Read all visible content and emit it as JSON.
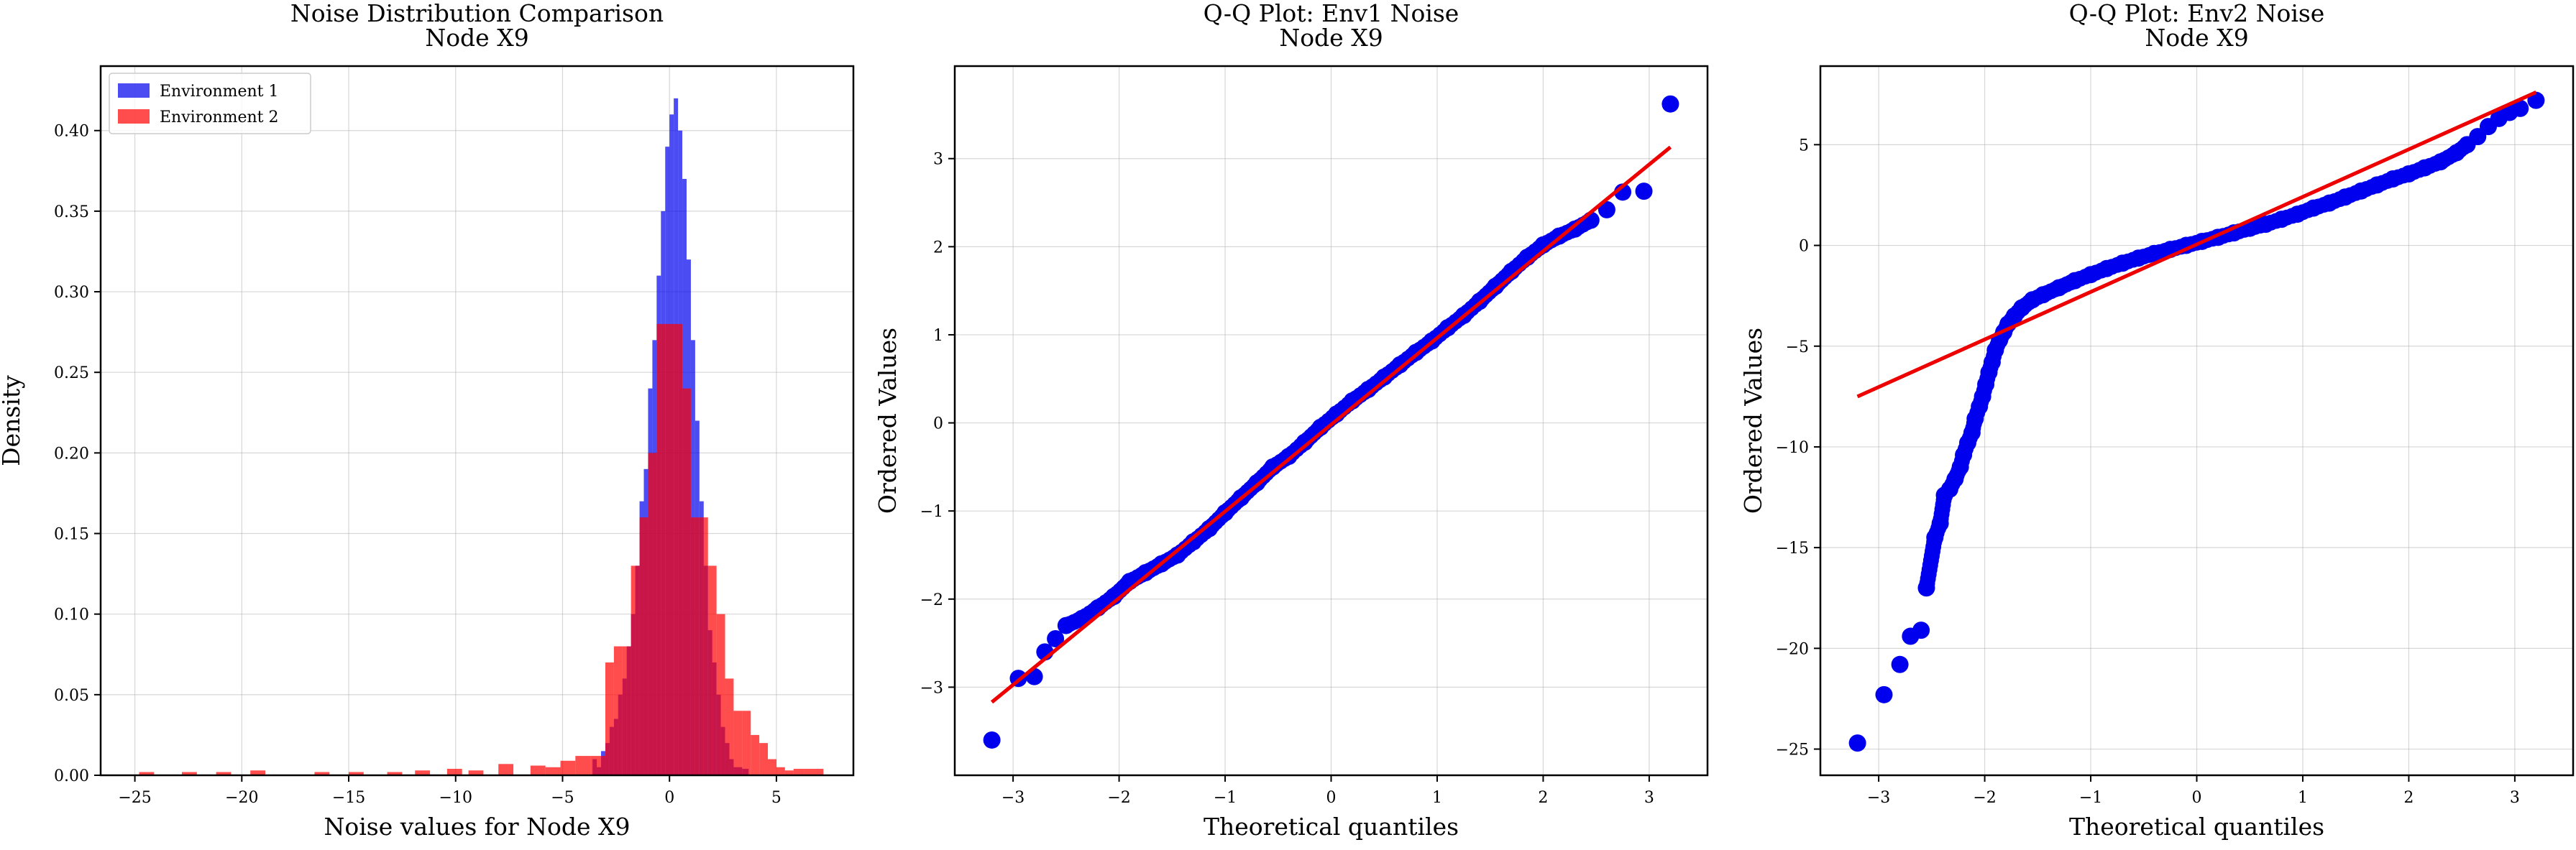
{
  "chart_data": [
    {
      "type": "histogram",
      "title": "Noise Distribution Comparison\nNode X9",
      "xlabel": "Noise values for Node X9",
      "ylabel": "Density",
      "xlim": [
        -26.6,
        8.6
      ],
      "ylim": [
        0,
        0.44
      ],
      "xticks": [
        -25,
        -20,
        -15,
        -10,
        -5,
        0,
        5
      ],
      "yticks": [
        0.0,
        0.05,
        0.1,
        0.15,
        0.2,
        0.25,
        0.3,
        0.35,
        0.4
      ],
      "xtick_labels": [
        "−25",
        "−20",
        "−15",
        "−10",
        "−5",
        "0",
        "5"
      ],
      "ytick_labels": [
        "0.00",
        "0.05",
        "0.10",
        "0.15",
        "0.20",
        "0.25",
        "0.30",
        "0.35",
        "0.40"
      ],
      "grid": true,
      "legend": "upper-left",
      "series": [
        {
          "name": "Environment 1",
          "color": "#0000ee",
          "alpha": 0.7,
          "bins": [
            [
              -3.6,
              -3.4,
              0.01
            ],
            [
              -3.4,
              -3.2,
              0.005
            ],
            [
              -3.2,
              -3.0,
              0.015
            ],
            [
              -3.0,
              -2.8,
              0.02
            ],
            [
              -2.8,
              -2.6,
              0.03
            ],
            [
              -2.6,
              -2.4,
              0.035
            ],
            [
              -2.4,
              -2.2,
              0.05
            ],
            [
              -2.2,
              -2.0,
              0.06
            ],
            [
              -2.0,
              -1.8,
              0.08
            ],
            [
              -1.8,
              -1.6,
              0.1
            ],
            [
              -1.6,
              -1.4,
              0.13
            ],
            [
              -1.4,
              -1.2,
              0.17
            ],
            [
              -1.2,
              -1.0,
              0.19
            ],
            [
              -1.0,
              -0.8,
              0.24
            ],
            [
              -0.8,
              -0.6,
              0.27
            ],
            [
              -0.6,
              -0.4,
              0.31
            ],
            [
              -0.4,
              -0.2,
              0.35
            ],
            [
              -0.2,
              0.0,
              0.39
            ],
            [
              0.0,
              0.2,
              0.41
            ],
            [
              0.2,
              0.4,
              0.42
            ],
            [
              0.4,
              0.6,
              0.4
            ],
            [
              0.6,
              0.8,
              0.37
            ],
            [
              0.8,
              1.0,
              0.32
            ],
            [
              1.0,
              1.2,
              0.27
            ],
            [
              1.2,
              1.4,
              0.22
            ],
            [
              1.4,
              1.6,
              0.17
            ],
            [
              1.6,
              1.8,
              0.13
            ],
            [
              1.8,
              2.0,
              0.09
            ],
            [
              2.0,
              2.2,
              0.07
            ],
            [
              2.2,
              2.4,
              0.05
            ],
            [
              2.4,
              2.6,
              0.03
            ],
            [
              2.6,
              2.8,
              0.02
            ],
            [
              2.8,
              3.0,
              0.01
            ],
            [
              3.0,
              3.4,
              0.005
            ],
            [
              3.4,
              3.7,
              0.004
            ]
          ]
        },
        {
          "name": "Environment 2",
          "color": "#ff0000",
          "alpha": 0.7,
          "bins": [
            [
              -24.8,
              -24.1,
              0.002
            ],
            [
              -22.8,
              -22.1,
              0.002
            ],
            [
              -21.2,
              -20.5,
              0.002
            ],
            [
              -19.6,
              -18.9,
              0.003
            ],
            [
              -16.6,
              -15.9,
              0.002
            ],
            [
              -15.0,
              -14.3,
              0.002
            ],
            [
              -13.2,
              -12.5,
              0.002
            ],
            [
              -11.9,
              -11.2,
              0.003
            ],
            [
              -10.4,
              -9.7,
              0.004
            ],
            [
              -9.4,
              -8.7,
              0.003
            ],
            [
              -8.0,
              -7.3,
              0.007
            ],
            [
              -6.5,
              -5.8,
              0.006
            ],
            [
              -5.8,
              -5.1,
              0.005
            ],
            [
              -5.1,
              -4.4,
              0.009
            ],
            [
              -4.4,
              -3.7,
              0.012
            ],
            [
              -3.7,
              -3.0,
              0.012
            ],
            [
              -3.0,
              -2.6,
              0.07
            ],
            [
              -2.6,
              -2.2,
              0.08
            ],
            [
              -2.2,
              -1.8,
              0.08
            ],
            [
              -1.8,
              -1.4,
              0.13
            ],
            [
              -1.4,
              -1.0,
              0.16
            ],
            [
              -1.0,
              -0.6,
              0.2
            ],
            [
              -0.6,
              -0.2,
              0.28
            ],
            [
              -0.2,
              0.2,
              0.28
            ],
            [
              0.2,
              0.6,
              0.28
            ],
            [
              0.6,
              1.0,
              0.24
            ],
            [
              1.0,
              1.4,
              0.16
            ],
            [
              1.4,
              1.8,
              0.16
            ],
            [
              1.8,
              2.2,
              0.13
            ],
            [
              2.2,
              2.6,
              0.1
            ],
            [
              2.6,
              3.0,
              0.06
            ],
            [
              3.0,
              3.4,
              0.04
            ],
            [
              3.4,
              3.8,
              0.04
            ],
            [
              3.8,
              4.2,
              0.025
            ],
            [
              4.2,
              4.6,
              0.02
            ],
            [
              4.6,
              5.0,
              0.01
            ],
            [
              5.0,
              5.4,
              0.005
            ],
            [
              5.4,
              5.8,
              0.003
            ],
            [
              5.8,
              6.3,
              0.004
            ],
            [
              6.3,
              7.2,
              0.004
            ]
          ]
        }
      ]
    },
    {
      "type": "scatter",
      "title": "Q-Q Plot: Env1 Noise\nNode X9",
      "xlabel": "Theoretical quantiles",
      "ylabel": "Ordered Values",
      "xlim": [
        -3.55,
        3.55
      ],
      "ylim": [
        -4.0,
        4.05
      ],
      "xticks": [
        -3,
        -2,
        -1,
        0,
        1,
        2,
        3
      ],
      "yticks": [
        -3,
        -2,
        -1,
        0,
        1,
        2,
        3
      ],
      "xtick_labels": [
        "−3",
        "−2",
        "−1",
        "0",
        "1",
        "2",
        "3"
      ],
      "ytick_labels": [
        "−3",
        "−2",
        "−1",
        "0",
        "1",
        "2",
        "3"
      ],
      "grid": true,
      "points_color": "#0000ee",
      "line_color": "#ee0000",
      "points": [
        [
          -3.2,
          -3.6
        ],
        [
          -2.95,
          -2.9
        ],
        [
          -2.8,
          -2.88
        ],
        [
          -2.7,
          -2.6
        ],
        [
          -2.6,
          -2.45
        ],
        [
          -2.5,
          -2.3
        ],
        [
          -2.35,
          -2.22
        ],
        [
          -2.2,
          -2.1
        ],
        [
          -2.05,
          -1.97
        ],
        [
          -1.9,
          -1.8
        ],
        [
          -1.75,
          -1.7
        ],
        [
          -1.6,
          -1.6
        ],
        [
          -1.45,
          -1.5
        ],
        [
          -1.3,
          -1.35
        ],
        [
          -1.15,
          -1.2
        ],
        [
          -1.0,
          -1.02
        ],
        [
          -0.85,
          -0.85
        ],
        [
          -0.7,
          -0.68
        ],
        [
          -0.55,
          -0.5
        ],
        [
          -0.4,
          -0.38
        ],
        [
          -0.25,
          -0.22
        ],
        [
          -0.1,
          -0.05
        ],
        [
          0.05,
          0.1
        ],
        [
          0.2,
          0.25
        ],
        [
          0.35,
          0.38
        ],
        [
          0.5,
          0.52
        ],
        [
          0.65,
          0.66
        ],
        [
          0.8,
          0.8
        ],
        [
          0.95,
          0.93
        ],
        [
          1.1,
          1.08
        ],
        [
          1.25,
          1.22
        ],
        [
          1.4,
          1.38
        ],
        [
          1.55,
          1.55
        ],
        [
          1.7,
          1.72
        ],
        [
          1.85,
          1.88
        ],
        [
          2.0,
          2.02
        ],
        [
          2.15,
          2.12
        ],
        [
          2.3,
          2.2
        ],
        [
          2.45,
          2.3
        ],
        [
          2.6,
          2.42
        ],
        [
          2.75,
          2.62
        ],
        [
          2.95,
          2.63
        ],
        [
          3.2,
          3.62
        ]
      ],
      "fit_line": [
        [
          -3.2,
          -3.17
        ],
        [
          3.2,
          3.13
        ]
      ]
    },
    {
      "type": "scatter",
      "title": "Q-Q Plot: Env2 Noise\nNode X9",
      "xlabel": "Theoretical quantiles",
      "ylabel": "Ordered Values",
      "xlim": [
        -3.55,
        3.55
      ],
      "ylim": [
        -26.3,
        8.9
      ],
      "xticks": [
        -3,
        -2,
        -1,
        0,
        1,
        2,
        3
      ],
      "yticks": [
        -25,
        -20,
        -15,
        -10,
        -5,
        0,
        5
      ],
      "xtick_labels": [
        "−3",
        "−2",
        "−1",
        "0",
        "1",
        "2",
        "3"
      ],
      "ytick_labels": [
        "−25",
        "−20",
        "−15",
        "−10",
        "−5",
        "0",
        "5"
      ],
      "grid": true,
      "points_color": "#0000ee",
      "line_color": "#ee0000",
      "points": [
        [
          -3.2,
          -24.7
        ],
        [
          -2.95,
          -22.3
        ],
        [
          -2.8,
          -20.8
        ],
        [
          -2.7,
          -19.4
        ],
        [
          -2.6,
          -19.1
        ],
        [
          -2.55,
          -17.0
        ],
        [
          -2.47,
          -14.5
        ],
        [
          -2.42,
          -13.8
        ],
        [
          -2.38,
          -12.4
        ],
        [
          -2.33,
          -12.1
        ],
        [
          -2.28,
          -11.6
        ],
        [
          -2.23,
          -11.0
        ],
        [
          -2.2,
          -10.4
        ],
        [
          -2.16,
          -9.8
        ],
        [
          -2.12,
          -9.3
        ],
        [
          -2.09,
          -8.6
        ],
        [
          -2.05,
          -8.0
        ],
        [
          -2.02,
          -7.5
        ],
        [
          -1.99,
          -6.9
        ],
        [
          -1.96,
          -6.3
        ],
        [
          -1.93,
          -5.8
        ],
        [
          -1.9,
          -5.2
        ],
        [
          -1.86,
          -4.7
        ],
        [
          -1.82,
          -4.3
        ],
        [
          -1.78,
          -3.9
        ],
        [
          -1.72,
          -3.5
        ],
        [
          -1.65,
          -3.1
        ],
        [
          -1.55,
          -2.7
        ],
        [
          -1.45,
          -2.45
        ],
        [
          -1.3,
          -2.1
        ],
        [
          -1.15,
          -1.75
        ],
        [
          -1.0,
          -1.45
        ],
        [
          -0.85,
          -1.15
        ],
        [
          -0.7,
          -0.88
        ],
        [
          -0.55,
          -0.63
        ],
        [
          -0.4,
          -0.4
        ],
        [
          -0.25,
          -0.2
        ],
        [
          -0.1,
          0.0
        ],
        [
          0.05,
          0.2
        ],
        [
          0.2,
          0.4
        ],
        [
          0.35,
          0.62
        ],
        [
          0.5,
          0.85
        ],
        [
          0.65,
          1.05
        ],
        [
          0.8,
          1.3
        ],
        [
          0.95,
          1.55
        ],
        [
          1.1,
          1.85
        ],
        [
          1.25,
          2.1
        ],
        [
          1.4,
          2.4
        ],
        [
          1.55,
          2.7
        ],
        [
          1.7,
          3.0
        ],
        [
          1.85,
          3.3
        ],
        [
          2.0,
          3.55
        ],
        [
          2.15,
          3.85
        ],
        [
          2.3,
          4.15
        ],
        [
          2.45,
          4.6
        ],
        [
          2.55,
          5.0
        ],
        [
          2.65,
          5.4
        ],
        [
          2.75,
          5.9
        ],
        [
          2.85,
          6.3
        ],
        [
          2.95,
          6.6
        ],
        [
          3.05,
          6.8
        ],
        [
          3.2,
          7.2
        ]
      ],
      "fit_line": [
        [
          -3.2,
          -7.5
        ],
        [
          3.2,
          7.6
        ]
      ]
    }
  ]
}
